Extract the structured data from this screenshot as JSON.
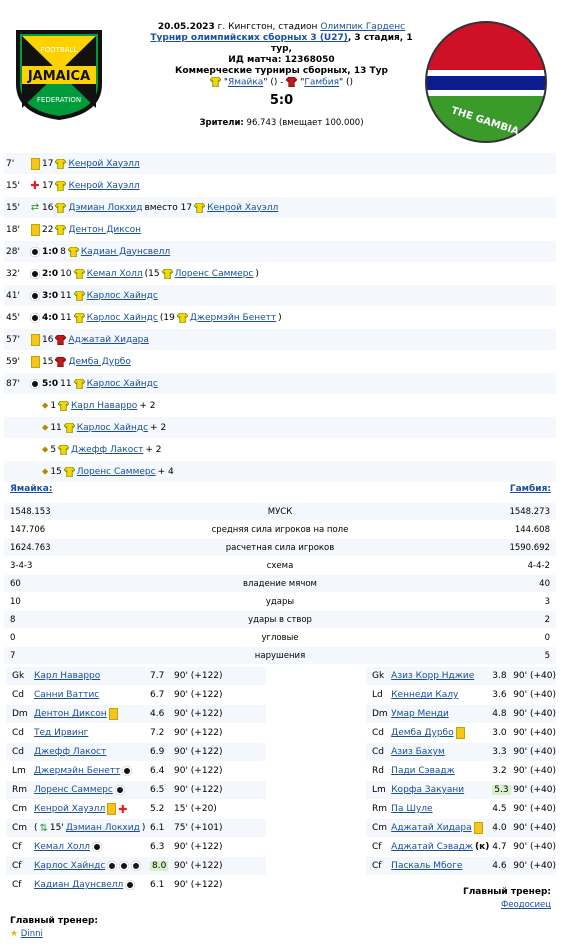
{
  "header": {
    "date": "20.05.2023",
    "location_pre": "г. Кингстон, стадион",
    "stadium": "Олимпик Гарденс",
    "tournament": "Турнир олимпийских сборных 3 (U27)",
    "stage": ", 3 стадия, 1 тур,",
    "match_id_label": "ИД матча: 12368050",
    "commercial": "Коммерческие турниры сборных, 13 Тур",
    "home_team": "Ямайка",
    "away_team": "Гамбия",
    "vs_sep": "() -",
    "paren": "()",
    "score": "5:0",
    "crowd_label": "Зрители:",
    "crowd_value": "96.743 (вмещает 100.000)"
  },
  "colors": {
    "link": "#1a4fa0",
    "row_alt": "#f4f7fb",
    "jam_green": "#009b3a",
    "jam_yellow": "#fed100",
    "gam_red": "#ce1126",
    "gam_blue": "#0c1c8c"
  },
  "events": [
    {
      "min": "7'",
      "icon": "yellow-card",
      "num": "17",
      "player": "Кенрой Хауэлл"
    },
    {
      "min": "15'",
      "icon": "red-cross",
      "num": "17",
      "player": "Кенрой Хауэлл"
    },
    {
      "min": "15'",
      "icon": "substitution",
      "num": "16",
      "player": "Дэмиан Локхид",
      "mid": "вместо 17",
      "player2": "Кенрой Хауэлл"
    },
    {
      "min": "18'",
      "icon": "yellow-card",
      "num": "22",
      "player": "Дентон Диксон"
    },
    {
      "min": "28'",
      "icon": "ball",
      "score": "1:0",
      "num": "8",
      "player": "Кадиан Даунсвелл"
    },
    {
      "min": "32'",
      "icon": "ball",
      "score": "2:0",
      "num": "10",
      "player": "Кемал Холл",
      "mid": "(15",
      "player2": "Лоренс Саммерс",
      "tail": ")"
    },
    {
      "min": "41'",
      "icon": "ball",
      "score": "3:0",
      "num": "11",
      "player": "Карлос Хайндс"
    },
    {
      "min": "45'",
      "icon": "ball",
      "score": "4:0",
      "num": "11",
      "player": "Карлос Хайндс",
      "mid": "(19",
      "player2": "Джермэйн Бенетт",
      "tail": ")"
    },
    {
      "min": "57'",
      "icon": "yellow-card",
      "num": "16",
      "player": "Аджатай Хидара",
      "away": true
    },
    {
      "min": "59'",
      "icon": "yellow-card",
      "num": "15",
      "player": "Демба Дурбо",
      "away": true
    },
    {
      "min": "87'",
      "icon": "ball",
      "score": "5:0",
      "num": "11",
      "player": "Карлос Хайндс"
    },
    {
      "min": "",
      "icon": "assist",
      "num": "1",
      "player": "Карл Наварро",
      "tail": "+ 2"
    },
    {
      "min": "",
      "icon": "assist",
      "num": "11",
      "player": "Карлос Хайндс",
      "tail": "+ 2"
    },
    {
      "min": "",
      "icon": "assist",
      "num": "5",
      "player": "Джефф Лакост",
      "tail": "+ 2"
    },
    {
      "min": "",
      "icon": "assist",
      "num": "15",
      "player": "Лоренс Саммерс",
      "tail": "+ 4"
    }
  ],
  "teams": {
    "home_label": "Ямайка:",
    "away_label": "Гамбия:"
  },
  "stats": [
    {
      "l": "1548.153",
      "c": "МУСК",
      "r": "1548.273"
    },
    {
      "l": "147.706",
      "c": "средняя сила игроков на поле",
      "r": "144.608"
    },
    {
      "l": "1624.763",
      "c": "расчетная сила игроков",
      "r": "1590.692"
    },
    {
      "l": "3-4-3",
      "c": "схема",
      "r": "4-4-2"
    },
    {
      "l": "60",
      "c": "владение мячом",
      "r": "40"
    },
    {
      "l": "10",
      "c": "удары",
      "r": "3"
    },
    {
      "l": "8",
      "c": "удары в створ",
      "r": "2"
    },
    {
      "l": "0",
      "c": "угловые",
      "r": "0"
    },
    {
      "l": "7",
      "c": "нарушения",
      "r": "5"
    }
  ],
  "home_lineup": [
    {
      "pos": "Gk",
      "name": "Карл Наварро",
      "rt": "7.7",
      "tm": "90' (+122)"
    },
    {
      "pos": "Cd",
      "name": "Санни Ваттис",
      "rt": "6.7",
      "tm": "90' (+122)"
    },
    {
      "pos": "Dm",
      "name": "Дентон Диксон",
      "rt": "4.6",
      "tm": "90' (+122)",
      "marks": [
        "yellow-card"
      ]
    },
    {
      "pos": "Cd",
      "name": "Тед Ирвинг",
      "rt": "7.2",
      "tm": "90' (+122)"
    },
    {
      "pos": "Cd",
      "name": "Джефф Лакост",
      "rt": "6.9",
      "tm": "90' (+122)"
    },
    {
      "pos": "Lm",
      "name": "Джермэйн Бенетт",
      "rt": "6.4",
      "tm": "90' (+122)",
      "marks": [
        "ball"
      ]
    },
    {
      "pos": "Rm",
      "name": "Лоренс Саммерс",
      "rt": "6.5",
      "tm": "90' (+122)",
      "marks": [
        "ball"
      ]
    },
    {
      "pos": "Cm",
      "name": "Кенрой Хауэлл",
      "rt": "5.2",
      "tm": "15' (+20)",
      "marks": [
        "yellow-card",
        "red-cross"
      ]
    },
    {
      "pos": "Cm",
      "name": "Дэмиан Локхид",
      "rt": "6.1",
      "tm": "75' (+101)",
      "pre": "15'",
      "tail": ")"
    },
    {
      "pos": "Cf",
      "name": "Кемал Холл",
      "rt": "6.3",
      "tm": "90' (+122)",
      "marks": [
        "ball"
      ]
    },
    {
      "pos": "Cf",
      "name": "Карлос Хайндс",
      "rt": "8.0",
      "tm": "90' (+122)",
      "marks": [
        "ball",
        "ball",
        "ball"
      ],
      "best": true
    },
    {
      "pos": "Cf",
      "name": "Кадиан Даунсвелл",
      "rt": "6.1",
      "tm": "90' (+122)",
      "marks": [
        "ball"
      ]
    }
  ],
  "away_lineup": [
    {
      "pos": "Gk",
      "name": "Азиз Корр Нджие",
      "rt": "3.8",
      "tm": "90' (+40)"
    },
    {
      "pos": "Ld",
      "name": "Кеннеди Калу",
      "rt": "3.6",
      "tm": "90' (+40)"
    },
    {
      "pos": "Dm",
      "name": "Умар Менди",
      "rt": "4.8",
      "tm": "90' (+40)"
    },
    {
      "pos": "Cd",
      "name": "Демба Дурбо",
      "rt": "3.0",
      "tm": "90' (+40)",
      "marks": [
        "yellow-card"
      ]
    },
    {
      "pos": "Cd",
      "name": "Азиз Бахум",
      "rt": "3.3",
      "tm": "90' (+40)"
    },
    {
      "pos": "Rd",
      "name": "Пади Сэвадж",
      "rt": "3.2",
      "tm": "90' (+40)"
    },
    {
      "pos": "Lm",
      "name": "Корфа Закуани",
      "rt": "5.3",
      "tm": "90' (+40)",
      "best": true
    },
    {
      "pos": "Rm",
      "name": "Па Шуле",
      "rt": "4.5",
      "tm": "90' (+40)"
    },
    {
      "pos": "Cm",
      "name": "Аджатай Хидара",
      "rt": "4.0",
      "tm": "90' (+40)",
      "marks": [
        "yellow-card"
      ]
    },
    {
      "pos": "Cf",
      "name": "Аджатай Сэвадж",
      "rt": "4.7",
      "tm": "90' (+40)",
      "suffix": "(к)"
    },
    {
      "pos": "Cf",
      "name": "Паскаль Мбоге",
      "rt": "4.6",
      "tm": "90' (+40)"
    }
  ],
  "coach": {
    "label": "Главный тренер:",
    "home_name": "Dinni",
    "away_name": "Феодосиец"
  },
  "logos": {
    "home_text_top": "FOOTBALL",
    "home_text_mid": "JAMAICA",
    "home_text_bot": "FEDERATION",
    "away_text": "THE GAMBIA"
  }
}
